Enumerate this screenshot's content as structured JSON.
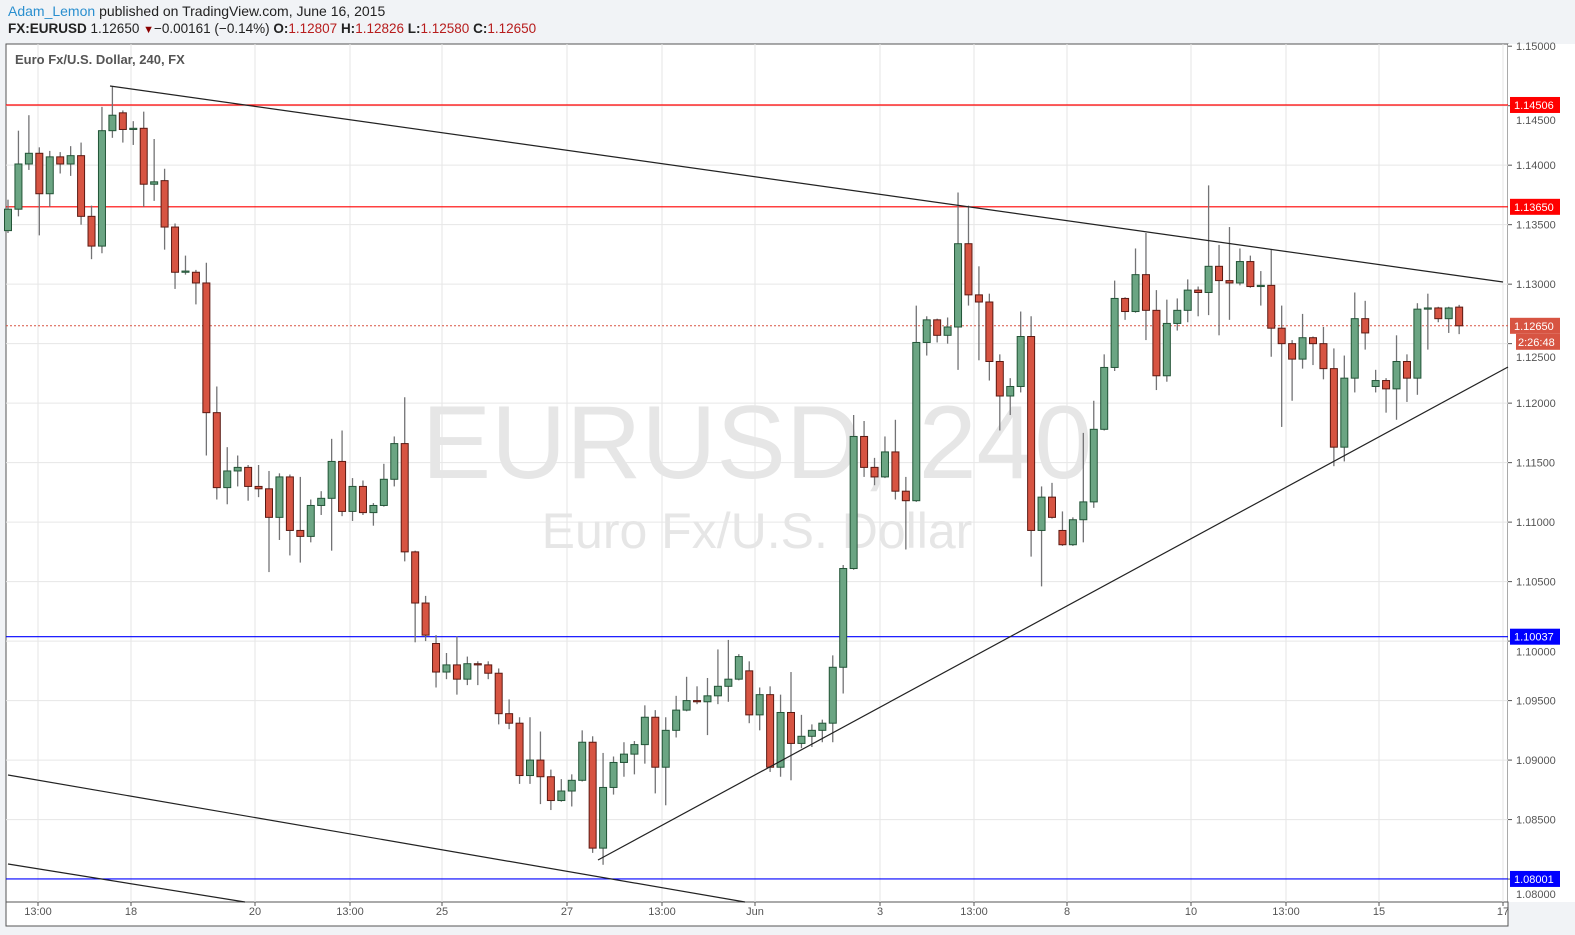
{
  "header": {
    "author": "Adam_Lemon",
    "published": "published on TradingView.com, June 16, 2015",
    "symbol": "FX:EURUSD",
    "last": "1.12650",
    "change_icon": "down-triangle-icon",
    "change": "−0.00161 (−0.14%)",
    "o_label": "O:",
    "o": "1.12807",
    "h_label": "H:",
    "h": "1.12826",
    "l_label": "L:",
    "l": "1.12580",
    "c_label": "C:",
    "c": "1.12650"
  },
  "legend": "Euro Fx/U.S. Dollar, 240, FX",
  "watermark": {
    "symbol": "EURUSD, 240",
    "description": "Euro Fx/U.S. Dollar"
  },
  "colors": {
    "up": "#6ba583",
    "up_border": "#225437",
    "down": "#d75442",
    "down_border": "#5b1a13",
    "resistance": "#ff0000",
    "support": "#0000ff",
    "author": "#2a8fcf"
  },
  "chart_data": {
    "type": "candlestick",
    "interval": "240",
    "ylim": [
      1.0775,
      1.1502
    ],
    "grid": true,
    "y_ticks": [
      "1.15000",
      "1.14500",
      "1.14000",
      "1.13500",
      "1.13000",
      "1.12500",
      "1.12000",
      "1.11500",
      "1.11000",
      "1.10500",
      "1.10000",
      "1.09500",
      "1.09000",
      "1.08500",
      "1.08000"
    ],
    "x_ticks": [
      "13:00",
      "18",
      "20",
      "13:00",
      "25",
      "27",
      "13:00",
      "Jun",
      "3",
      "13:00",
      "8",
      "10",
      "13:00",
      "15",
      "17"
    ],
    "horizontal_lines": [
      {
        "price": 1.14506,
        "label": "1.14506",
        "color": "#ff0000"
      },
      {
        "price": 1.1365,
        "label": "1.13650",
        "color": "#ff0000"
      },
      {
        "price": 1.10037,
        "label": "1.10037",
        "color": "#0000ff"
      },
      {
        "price": 1.08001,
        "label": "1.08001",
        "color": "#0000ff"
      }
    ],
    "current_price": {
      "price": 1.1265,
      "label": "1.12650",
      "countdown": "2:26:48",
      "color": "#d75442"
    },
    "candles_ohlc": [
      [
        1.1345,
        1.1371,
        1.1343,
        1.1363
      ],
      [
        1.1363,
        1.1429,
        1.1357,
        1.1401
      ],
      [
        1.1401,
        1.1442,
        1.1396,
        1.141
      ],
      [
        1.141,
        1.1415,
        1.1341,
        1.1376
      ],
      [
        1.1376,
        1.1412,
        1.1365,
        1.1407
      ],
      [
        1.1407,
        1.1411,
        1.1393,
        1.1401
      ],
      [
        1.1401,
        1.1416,
        1.1391,
        1.1408
      ],
      [
        1.1408,
        1.1419,
        1.135,
        1.1357
      ],
      [
        1.1357,
        1.1366,
        1.1321,
        1.1332
      ],
      [
        1.1332,
        1.1449,
        1.1326,
        1.1429
      ],
      [
        1.1429,
        1.1466,
        1.1423,
        1.1442
      ],
      [
        1.1444,
        1.1446,
        1.1419,
        1.143
      ],
      [
        1.143,
        1.1437,
        1.1417,
        1.1431
      ],
      [
        1.1431,
        1.1445,
        1.1365,
        1.1384
      ],
      [
        1.1384,
        1.1422,
        1.137,
        1.1386
      ],
      [
        1.1387,
        1.1397,
        1.1329,
        1.1348
      ],
      [
        1.1348,
        1.1351,
        1.1296,
        1.131
      ],
      [
        1.131,
        1.1324,
        1.1308,
        1.1311
      ],
      [
        1.131,
        1.1312,
        1.1283,
        1.1301
      ],
      [
        1.1301,
        1.1318,
        1.1156,
        1.1192
      ],
      [
        1.1192,
        1.1214,
        1.1119,
        1.1129
      ],
      [
        1.1129,
        1.1163,
        1.1115,
        1.1143
      ],
      [
        1.1143,
        1.1156,
        1.113,
        1.1146
      ],
      [
        1.1146,
        1.1148,
        1.1118,
        1.113
      ],
      [
        1.113,
        1.1148,
        1.1121,
        1.1128
      ],
      [
        1.1128,
        1.1143,
        1.1058,
        1.1104
      ],
      [
        1.1104,
        1.1141,
        1.1085,
        1.1138
      ],
      [
        1.1138,
        1.114,
        1.1072,
        1.1093
      ],
      [
        1.1093,
        1.1138,
        1.1066,
        1.1088
      ],
      [
        1.1088,
        1.1119,
        1.1083,
        1.1114
      ],
      [
        1.1114,
        1.1126,
        1.1106,
        1.112
      ],
      [
        1.112,
        1.117,
        1.1076,
        1.1151
      ],
      [
        1.1151,
        1.1177,
        1.1105,
        1.1109
      ],
      [
        1.1109,
        1.1137,
        1.1101,
        1.113
      ],
      [
        1.113,
        1.1135,
        1.1106,
        1.1108
      ],
      [
        1.1108,
        1.1116,
        1.1097,
        1.1114
      ],
      [
        1.1114,
        1.1149,
        1.1113,
        1.1136
      ],
      [
        1.1136,
        1.1172,
        1.113,
        1.1166
      ],
      [
        1.1166,
        1.1205,
        1.1067,
        1.1075
      ],
      [
        1.1075,
        1.1076,
        1.0999,
        1.1032
      ],
      [
        1.1032,
        1.1038,
        1.1,
        1.1005
      ],
      [
        1.0998,
        1.1005,
        1.0961,
        1.0974
      ],
      [
        1.0974,
        1.099,
        1.0968,
        1.098
      ],
      [
        1.098,
        1.1004,
        1.0955,
        1.0968
      ],
      [
        1.0968,
        1.0987,
        1.0963,
        1.0981
      ],
      [
        1.0981,
        1.0983,
        1.0963,
        1.098
      ],
      [
        1.098,
        1.0983,
        1.0968,
        1.0973
      ],
      [
        1.0973,
        1.0977,
        1.093,
        1.0939
      ],
      [
        1.0939,
        1.0951,
        1.0926,
        1.0931
      ],
      [
        1.0931,
        1.0936,
        1.088,
        1.0887
      ],
      [
        1.0887,
        1.0936,
        1.088,
        1.09
      ],
      [
        1.09,
        1.0924,
        1.0863,
        1.0886
      ],
      [
        1.0886,
        1.0892,
        1.0858,
        1.0866
      ],
      [
        1.0866,
        1.0884,
        1.0865,
        1.0874
      ],
      [
        1.0874,
        1.0888,
        1.0861,
        1.0883
      ],
      [
        1.0883,
        1.0925,
        1.0882,
        1.0915
      ],
      [
        1.0915,
        1.092,
        1.0822,
        1.0826
      ],
      [
        1.0826,
        1.0906,
        1.0812,
        1.0877
      ],
      [
        1.0877,
        1.0903,
        1.0871,
        1.0898
      ],
      [
        1.0898,
        1.0915,
        1.0886,
        1.0905
      ],
      [
        1.0905,
        1.0916,
        1.0888,
        1.0913
      ],
      [
        1.0913,
        1.0946,
        1.0897,
        1.0936
      ],
      [
        1.0936,
        1.0942,
        1.0872,
        1.0894
      ],
      [
        1.0894,
        1.0936,
        1.0862,
        1.0925
      ],
      [
        1.0925,
        1.0954,
        1.0919,
        1.0942
      ],
      [
        1.0942,
        1.097,
        1.0941,
        1.095
      ],
      [
        1.095,
        1.0962,
        1.0947,
        1.0949
      ],
      [
        1.0949,
        1.0969,
        1.0921,
        1.0954
      ],
      [
        1.0954,
        1.0993,
        1.0947,
        1.0962
      ],
      [
        1.0962,
        1.1001,
        1.0949,
        1.0968
      ],
      [
        1.0968,
        1.0989,
        1.0967,
        1.0987
      ],
      [
        1.0975,
        1.0983,
        1.0931,
        1.0938
      ],
      [
        1.0938,
        1.0961,
        1.0925,
        1.0955
      ],
      [
        1.0955,
        1.0962,
        1.089,
        1.0894
      ],
      [
        1.0894,
        1.0955,
        1.0886,
        1.094
      ],
      [
        1.094,
        1.0974,
        1.0883,
        1.0914
      ],
      [
        1.0914,
        1.0938,
        1.091,
        1.092
      ],
      [
        1.092,
        1.093,
        1.0911,
        1.0925
      ],
      [
        1.0925,
        1.0934,
        1.0915,
        1.0931
      ],
      [
        1.0931,
        1.0988,
        1.0915,
        1.0978
      ],
      [
        1.0978,
        1.1064,
        1.0956,
        1.1061
      ],
      [
        1.1061,
        1.119,
        1.106,
        1.1172
      ],
      [
        1.1172,
        1.1185,
        1.1138,
        1.1146
      ],
      [
        1.1146,
        1.1154,
        1.1131,
        1.1138
      ],
      [
        1.1138,
        1.1172,
        1.1137,
        1.1159
      ],
      [
        1.1159,
        1.1186,
        1.1119,
        1.1126
      ],
      [
        1.1126,
        1.1138,
        1.1077,
        1.1118
      ],
      [
        1.1118,
        1.1282,
        1.1117,
        1.1251
      ],
      [
        1.1251,
        1.1273,
        1.124,
        1.127
      ],
      [
        1.127,
        1.1271,
        1.1251,
        1.1257
      ],
      [
        1.1257,
        1.1272,
        1.125,
        1.1264
      ],
      [
        1.1264,
        1.1377,
        1.1228,
        1.1334
      ],
      [
        1.1334,
        1.1366,
        1.1282,
        1.1291
      ],
      [
        1.1291,
        1.1315,
        1.1236,
        1.1285
      ],
      [
        1.1285,
        1.1292,
        1.1219,
        1.1235
      ],
      [
        1.1235,
        1.1241,
        1.1177,
        1.1206
      ],
      [
        1.1206,
        1.1221,
        1.119,
        1.1214
      ],
      [
        1.1214,
        1.1277,
        1.1209,
        1.1256
      ],
      [
        1.1256,
        1.1273,
        1.1071,
        1.1093
      ],
      [
        1.1093,
        1.113,
        1.1046,
        1.1121
      ],
      [
        1.1121,
        1.1133,
        1.1103,
        1.1104
      ],
      [
        1.1093,
        1.1109,
        1.108,
        1.1081
      ],
      [
        1.1081,
        1.1104,
        1.108,
        1.1102
      ],
      [
        1.1102,
        1.1175,
        1.1083,
        1.1117
      ],
      [
        1.1117,
        1.1202,
        1.1112,
        1.1178
      ],
      [
        1.1178,
        1.1241,
        1.1177,
        1.123
      ],
      [
        1.123,
        1.1303,
        1.1227,
        1.1288
      ],
      [
        1.1288,
        1.1289,
        1.127,
        1.1277
      ],
      [
        1.1277,
        1.133,
        1.1276,
        1.1308
      ],
      [
        1.1308,
        1.1343,
        1.1253,
        1.1278
      ],
      [
        1.1278,
        1.1295,
        1.1211,
        1.1223
      ],
      [
        1.1223,
        1.1287,
        1.1218,
        1.1267
      ],
      [
        1.1267,
        1.1288,
        1.1261,
        1.1278
      ],
      [
        1.1278,
        1.1304,
        1.1268,
        1.1295
      ],
      [
        1.1295,
        1.1298,
        1.1273,
        1.1293
      ],
      [
        1.1293,
        1.1383,
        1.1274,
        1.1315
      ],
      [
        1.1315,
        1.1333,
        1.1257,
        1.1303
      ],
      [
        1.1303,
        1.1348,
        1.127,
        1.1301
      ],
      [
        1.1301,
        1.133,
        1.1299,
        1.1319
      ],
      [
        1.1319,
        1.1324,
        1.1297,
        1.1298
      ],
      [
        1.1298,
        1.1311,
        1.1282,
        1.1299
      ],
      [
        1.1299,
        1.1329,
        1.1239,
        1.1263
      ],
      [
        1.1263,
        1.1282,
        1.118,
        1.125
      ],
      [
        1.125,
        1.1253,
        1.1202,
        1.1237
      ],
      [
        1.1237,
        1.1275,
        1.1229,
        1.1255
      ],
      [
        1.1255,
        1.1256,
        1.1232,
        1.125
      ],
      [
        1.125,
        1.1264,
        1.122,
        1.1229
      ],
      [
        1.1229,
        1.1246,
        1.1147,
        1.1163
      ],
      [
        1.1163,
        1.124,
        1.1151,
        1.1221
      ],
      [
        1.1221,
        1.1293,
        1.1209,
        1.1271
      ],
      [
        1.1271,
        1.1286,
        1.1245,
        1.1259
      ],
      [
        1.1214,
        1.1228,
        1.1209,
        1.1219
      ],
      [
        1.1219,
        1.1221,
        1.1192,
        1.1212
      ],
      [
        1.1212,
        1.1257,
        1.1186,
        1.1235
      ],
      [
        1.1235,
        1.1241,
        1.1201,
        1.1221
      ],
      [
        1.1221,
        1.1284,
        1.1207,
        1.1279
      ],
      [
        1.1279,
        1.1292,
        1.1245,
        1.128
      ],
      [
        1.128,
        1.1281,
        1.1268,
        1.1271
      ],
      [
        1.1271,
        1.1281,
        1.1259,
        1.128
      ],
      [
        1.12807,
        1.12826,
        1.1258,
        1.1265
      ]
    ]
  }
}
